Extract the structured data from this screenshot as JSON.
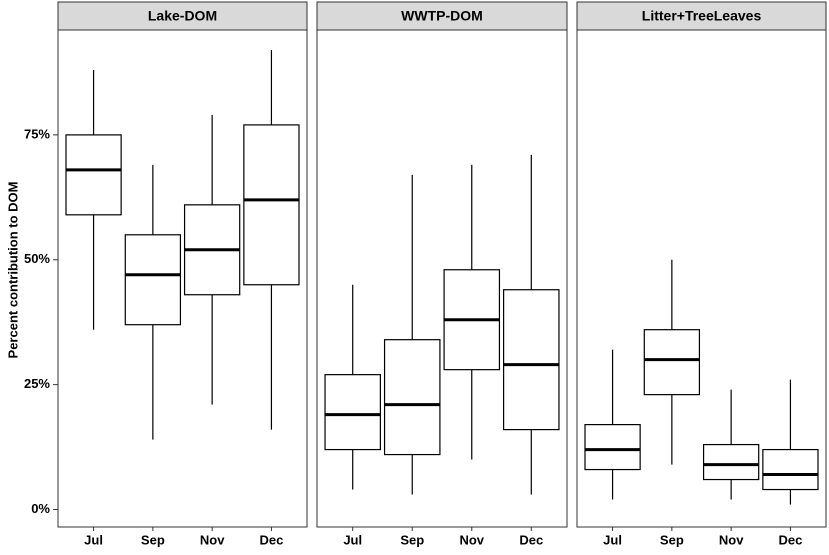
{
  "chart_data": {
    "type": "box",
    "ylabel": "Percent contribution to DOM",
    "categories": [
      "Jul",
      "Sep",
      "Nov",
      "Dec"
    ],
    "panels": [
      {
        "title": "Lake-DOM",
        "min": [
          36,
          14,
          21,
          16
        ],
        "q1": [
          59,
          37,
          43,
          45
        ],
        "median": [
          68,
          47,
          52,
          62
        ],
        "q3": [
          75,
          55,
          61,
          77
        ],
        "max": [
          88,
          69,
          79,
          92
        ]
      },
      {
        "title": "WWTP-DOM",
        "min": [
          4,
          3,
          10,
          3
        ],
        "q1": [
          12,
          11,
          28,
          16
        ],
        "median": [
          19,
          21,
          38,
          29
        ],
        "q3": [
          27,
          34,
          48,
          44
        ],
        "max": [
          45,
          67,
          69,
          71
        ]
      },
      {
        "title": "Litter+TreeLeaves",
        "min": [
          2,
          9,
          2,
          1
        ],
        "q1": [
          8,
          23,
          6,
          4
        ],
        "median": [
          12,
          30,
          9,
          7
        ],
        "q3": [
          17,
          36,
          13,
          12
        ],
        "max": [
          32,
          50,
          24,
          26
        ]
      }
    ],
    "ylim": [
      -3.5,
      96
    ],
    "yticks": [
      {
        "value": 0,
        "label": "0%"
      },
      {
        "value": 25,
        "label": "25%"
      },
      {
        "value": 50,
        "label": "50%"
      },
      {
        "value": 75,
        "label": "75%"
      }
    ],
    "color": "#000000",
    "fill": "#ffffff",
    "strip_color": "#d9d9d9"
  }
}
